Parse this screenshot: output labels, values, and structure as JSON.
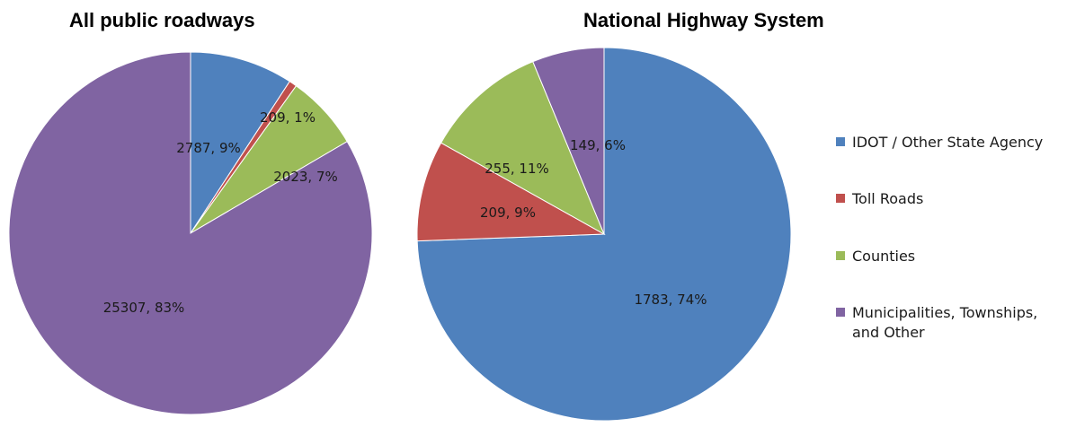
{
  "chart_data": [
    {
      "type": "pie",
      "title": "All public roadways",
      "categories": [
        "IDOT / Other State Agency",
        "Toll Roads",
        "Counties",
        "Municipalities, Townships, and Other"
      ],
      "values": [
        2787,
        209,
        2023,
        25307
      ],
      "labels": [
        "2787, 9%",
        "209, 1%",
        "2023, 7%",
        "25307, 83%"
      ]
    },
    {
      "type": "pie",
      "title": "National Highway System",
      "categories": [
        "IDOT / Other State Agency",
        "Toll Roads",
        "Counties",
        "Municipalities, Townships, and Other"
      ],
      "values": [
        1783,
        209,
        255,
        149
      ],
      "labels": [
        "1783, 74%",
        "209, 9%",
        "255, 11%",
        "149, 6%"
      ]
    }
  ],
  "legend": {
    "items": [
      {
        "label": "IDOT / Other State Agency",
        "color": "#4f81bd"
      },
      {
        "label": "Toll Roads",
        "color": "#c0504d"
      },
      {
        "label": "Counties",
        "color": "#9bbb59"
      },
      {
        "label": "Municipalities, Townships, and Other",
        "color": "#8064a2"
      }
    ]
  },
  "colors": [
    "#4f81bd",
    "#c0504d",
    "#9bbb59",
    "#8064a2"
  ]
}
